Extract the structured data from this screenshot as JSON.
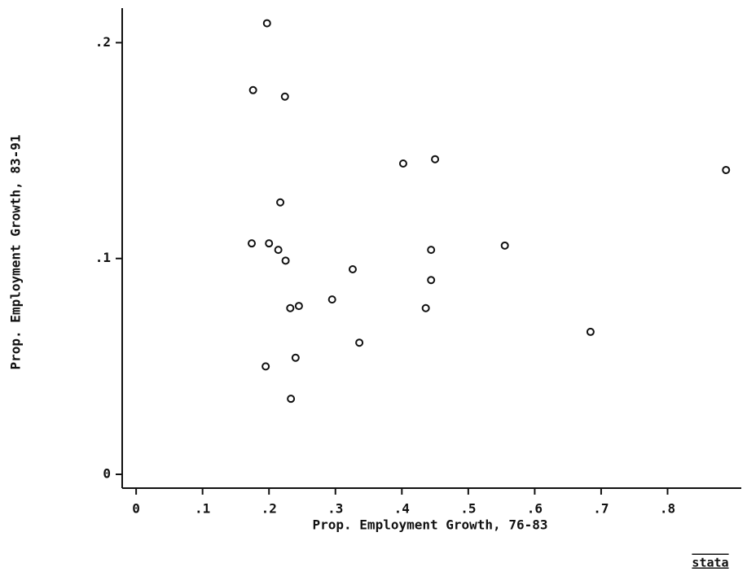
{
  "chart_data": {
    "type": "scatter",
    "x_label": "Prop. Employment Growth, 76-83",
    "y_label": "Prop. Employment Growth, 83-91",
    "logo": "stata",
    "color": "#111111",
    "x": [
      0.197,
      0.176,
      0.224,
      0.217,
      0.174,
      0.2,
      0.214,
      0.225,
      0.232,
      0.245,
      0.195,
      0.24,
      0.233,
      0.295,
      0.326,
      0.336,
      0.402,
      0.45,
      0.444,
      0.444,
      0.436,
      0.555,
      0.684,
      0.888
    ],
    "values": [
      0.209,
      0.178,
      0.175,
      0.126,
      0.107,
      0.107,
      0.104,
      0.099,
      0.077,
      0.078,
      0.05,
      0.054,
      0.035,
      0.081,
      0.095,
      0.061,
      0.144,
      0.146,
      0.104,
      0.09,
      0.077,
      0.106,
      0.066,
      0.141
    ],
    "xlim": [
      -0.021,
      0.911
    ],
    "ylim": [
      -0.0064,
      0.216
    ],
    "xticks": [
      0,
      {
        "value": 0.1,
        "label": ".1"
      },
      {
        "value": 0.2,
        "label": ".2"
      },
      {
        "value": 0.3,
        "label": ".3"
      },
      {
        "value": 0.4,
        "label": ".4"
      },
      {
        "value": 0.5,
        "label": ".5"
      },
      {
        "value": 0.6,
        "label": ".6"
      },
      {
        "value": 0.7,
        "label": ".7"
      },
      {
        "value": 0.8,
        "label": ".8"
      }
    ],
    "yticks": [
      0,
      {
        "value": 0.1,
        "label": ".1"
      },
      {
        "value": 0.2,
        "label": ".2"
      }
    ]
  }
}
